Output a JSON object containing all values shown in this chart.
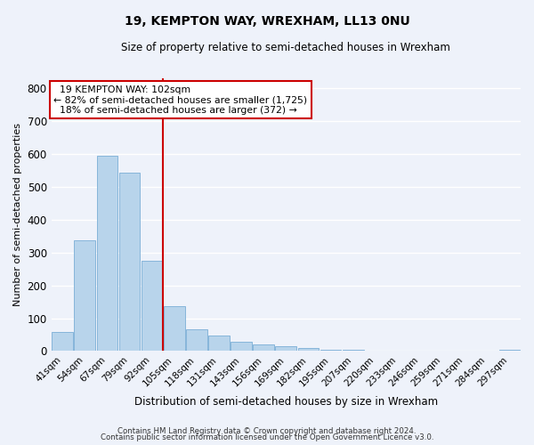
{
  "title": "19, KEMPTON WAY, WREXHAM, LL13 0NU",
  "subtitle": "Size of property relative to semi-detached houses in Wrexham",
  "xlabel": "Distribution of semi-detached houses by size in Wrexham",
  "ylabel": "Number of semi-detached properties",
  "bar_labels": [
    "41sqm",
    "54sqm",
    "67sqm",
    "79sqm",
    "92sqm",
    "105sqm",
    "118sqm",
    "131sqm",
    "143sqm",
    "156sqm",
    "169sqm",
    "182sqm",
    "195sqm",
    "207sqm",
    "220sqm",
    "233sqm",
    "246sqm",
    "259sqm",
    "271sqm",
    "284sqm",
    "297sqm"
  ],
  "bar_values": [
    57,
    338,
    595,
    544,
    275,
    137,
    65,
    46,
    28,
    20,
    15,
    10,
    4,
    3,
    2,
    1,
    1,
    0,
    0,
    0,
    5
  ],
  "bar_color": "#b8d4eb",
  "bar_edge_color": "#7aaed6",
  "ylim": [
    0,
    830
  ],
  "yticks": [
    0,
    100,
    200,
    300,
    400,
    500,
    600,
    700,
    800
  ],
  "property_label": "19 KEMPTON WAY: 102sqm",
  "pct_smaller": 82,
  "count_smaller": 1725,
  "pct_larger": 18,
  "count_larger": 372,
  "vline_color": "#cc0000",
  "annotation_box_edge": "#cc0000",
  "footer_line1": "Contains HM Land Registry data © Crown copyright and database right 2024.",
  "footer_line2": "Contains public sector information licensed under the Open Government Licence v3.0.",
  "background_color": "#eef2fa",
  "grid_color": "#ffffff"
}
